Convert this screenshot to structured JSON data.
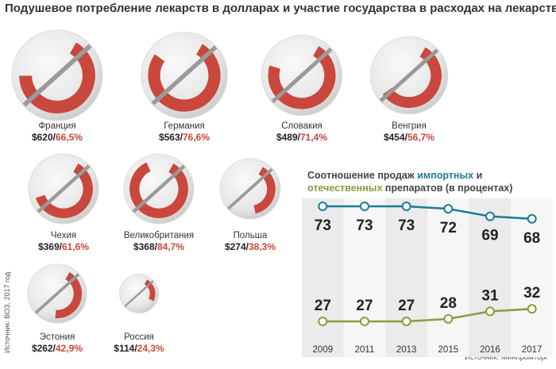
{
  "chart_data": [
    {
      "type": "donut",
      "title": "Подушевое потребление лекарств в долларах и участие государства в расходах на лекарства",
      "source": "Источник: ВОЗ, 2017 год",
      "categories": [
        "Франция",
        "Германия",
        "Словакия",
        "Венгрия",
        "Чехия",
        "Великобритания",
        "Польша",
        "Эстония",
        "Россия"
      ],
      "spending": {
        "values": [
          620,
          563,
          489,
          454,
          369,
          368,
          274,
          262,
          114
        ],
        "value_labels": [
          "$620",
          "$563",
          "$489",
          "$454",
          "$369",
          "$368",
          "$274",
          "$262",
          "$114"
        ]
      },
      "share": {
        "values": [
          66.5,
          76.6,
          71.4,
          56.7,
          61.6,
          84.7,
          38.3,
          42.9,
          24.3
        ],
        "value_labels": [
          "66,5%",
          "76,6%",
          "71,4%",
          "56,7%",
          "61,6%",
          "84,7%",
          "38,3%",
          "42,9%",
          "24,3%"
        ],
        "color": "#c9473d"
      }
    },
    {
      "type": "line",
      "title_parts": [
        "Соотношение продаж",
        "и",
        "препаратов (в процентах)"
      ],
      "categories": [
        "2009",
        "2011",
        "2013",
        "2015",
        "2016",
        "2017"
      ],
      "series": [
        {
          "name": "импортных",
          "color": "#1b7d95",
          "values": [
            73,
            73,
            73,
            72,
            69,
            68
          ]
        },
        {
          "name": "отечественных",
          "color": "#8c9b3c",
          "values": [
            27,
            27,
            27,
            28,
            31,
            32
          ]
        }
      ],
      "source": "Источник: Минпромторг"
    }
  ]
}
